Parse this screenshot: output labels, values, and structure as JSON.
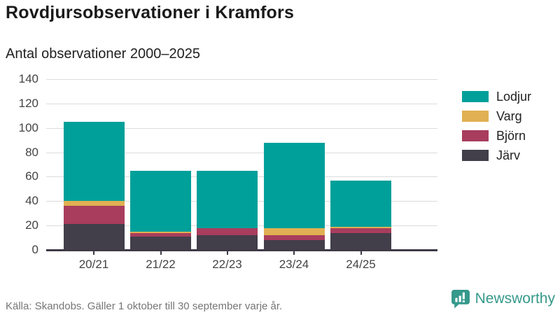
{
  "header": {
    "title": "Rovdjursobservationer i Kramfors",
    "subtitle": "Antal observationer 2000–2025"
  },
  "footer": {
    "source": "Källa: Skandobs. Gäller 1 oktober till 30 september varje år.",
    "brand": "Newsworthy"
  },
  "colors": {
    "lodjur": "#00a09a",
    "varg": "#e0b052",
    "bjorn": "#a83d5d",
    "jarv": "#423e4a",
    "brand_teal": "#35998b",
    "grid": "#dcdcdc",
    "axis": "#3f3b47"
  },
  "chart_data": {
    "type": "bar",
    "stacked": true,
    "title": "Rovdjursobservationer i Kramfors",
    "subtitle": "Antal observationer 2000–2025",
    "categories": [
      "20/21",
      "21/22",
      "22/23",
      "23/24",
      "24/25"
    ],
    "series": [
      {
        "name": "Järv",
        "color_key": "jarv",
        "values": [
          21,
          11,
          12,
          8,
          14
        ]
      },
      {
        "name": "Björn",
        "color_key": "bjorn",
        "values": [
          15,
          3,
          6,
          4,
          4
        ]
      },
      {
        "name": "Varg",
        "color_key": "varg",
        "values": [
          4,
          1,
          0,
          6,
          1
        ]
      },
      {
        "name": "Lodjur",
        "color_key": "lodjur",
        "values": [
          65,
          50,
          47,
          70,
          38
        ]
      }
    ],
    "totals": [
      105,
      65,
      65,
      88,
      57
    ],
    "xlabel": "",
    "ylabel": "",
    "ylim": [
      0,
      140
    ],
    "yticks": [
      0,
      20,
      40,
      60,
      80,
      100,
      120,
      140
    ],
    "grid": true,
    "legend_position": "right",
    "legend": [
      {
        "label": "Lodjur",
        "color_key": "lodjur"
      },
      {
        "label": "Varg",
        "color_key": "varg"
      },
      {
        "label": "Björn",
        "color_key": "bjorn"
      },
      {
        "label": "Järv",
        "color_key": "jarv"
      }
    ]
  }
}
